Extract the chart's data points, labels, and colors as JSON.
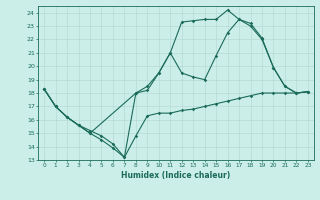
{
  "xlabel": "Humidex (Indice chaleur)",
  "bg_color": "#cceee8",
  "line_color": "#1a6b5a",
  "grid_color": "#b0d8d0",
  "xlim": [
    -0.5,
    23.5
  ],
  "ylim": [
    13,
    24.5
  ],
  "yticks": [
    13,
    14,
    15,
    16,
    17,
    18,
    19,
    20,
    21,
    22,
    23,
    24
  ],
  "xticks": [
    0,
    1,
    2,
    3,
    4,
    5,
    6,
    7,
    8,
    9,
    10,
    11,
    12,
    13,
    14,
    15,
    16,
    17,
    18,
    19,
    20,
    21,
    22,
    23
  ],
  "lines": [
    {
      "x": [
        0,
        1,
        2,
        3,
        4,
        5,
        6,
        7,
        8,
        9,
        10,
        11,
        12,
        13,
        14,
        15,
        16,
        17,
        18,
        19,
        20,
        21,
        22,
        23
      ],
      "y": [
        18.3,
        17.0,
        16.2,
        15.6,
        15.0,
        14.5,
        13.9,
        13.2,
        18.0,
        18.2,
        19.5,
        21.0,
        23.3,
        23.4,
        23.5,
        23.5,
        24.2,
        23.5,
        23.2,
        22.1,
        19.9,
        18.5,
        18.0,
        18.1
      ]
    },
    {
      "x": [
        0,
        1,
        2,
        3,
        4,
        8,
        9,
        10,
        11,
        12,
        13,
        14,
        15,
        16,
        17,
        18,
        19,
        20,
        21,
        22,
        23
      ],
      "y": [
        18.3,
        17.0,
        16.2,
        15.6,
        15.0,
        18.0,
        18.5,
        19.5,
        21.0,
        19.5,
        19.2,
        19.0,
        20.8,
        22.5,
        23.5,
        23.0,
        22.0,
        19.9,
        18.5,
        18.0,
        18.1
      ]
    },
    {
      "x": [
        0,
        1,
        2,
        3,
        4,
        5,
        6,
        7,
        8,
        9,
        10,
        11,
        12,
        13,
        14,
        15,
        16,
        17,
        18,
        19,
        20,
        21,
        22,
        23
      ],
      "y": [
        18.3,
        17.0,
        16.2,
        15.6,
        15.2,
        14.8,
        14.2,
        13.2,
        14.8,
        16.3,
        16.5,
        16.5,
        16.7,
        16.8,
        17.0,
        17.2,
        17.4,
        17.6,
        17.8,
        18.0,
        18.0,
        18.0,
        18.0,
        18.1
      ]
    }
  ]
}
